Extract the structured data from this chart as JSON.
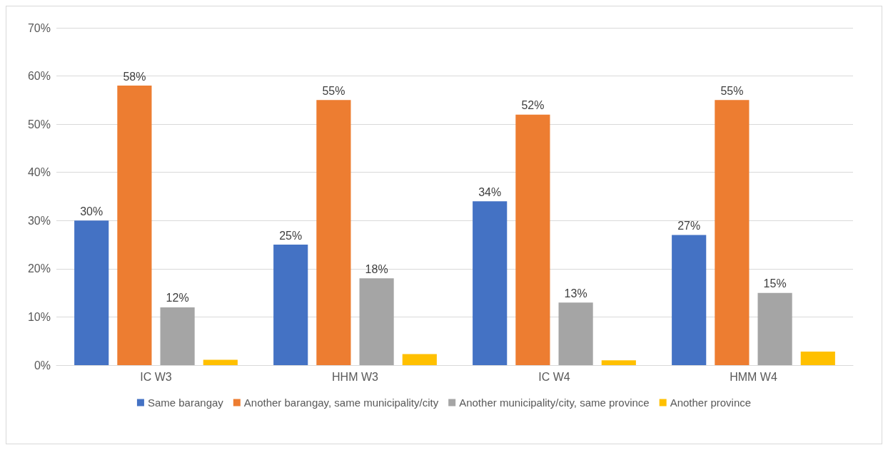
{
  "chart_data": {
    "type": "bar",
    "categories": [
      "IC W3",
      "HHM W3",
      "IC W4",
      "HMM W4"
    ],
    "series": [
      {
        "name": "Same barangay",
        "color": "#4472c4",
        "values": [
          30,
          25,
          34,
          27
        ],
        "value_labels": [
          "30%",
          "25%",
          "34%",
          "27%"
        ]
      },
      {
        "name": "Another barangay, same municipality/city",
        "color": "#ed7d31",
        "values": [
          58,
          55,
          52,
          55
        ],
        "value_labels": [
          "58%",
          "55%",
          "52%",
          "55%"
        ]
      },
      {
        "name": "Another municipality/city, same province",
        "color": "#a5a5a5",
        "values": [
          12,
          18,
          13,
          15
        ],
        "value_labels": [
          "12%",
          "18%",
          "13%",
          "15%"
        ]
      },
      {
        "name": "Another province",
        "color": "#ffc000",
        "values": [
          1.1,
          2.3,
          1,
          2.8
        ],
        "value_labels": [
          null,
          null,
          null,
          null
        ]
      }
    ],
    "ylim": [
      0,
      70
    ],
    "yticks": [
      {
        "value": 0,
        "label": "0%"
      },
      {
        "value": 10,
        "label": "10%"
      },
      {
        "value": 20,
        "label": "20%"
      },
      {
        "value": 30,
        "label": "30%"
      },
      {
        "value": 40,
        "label": "40%"
      },
      {
        "value": 50,
        "label": "50%"
      },
      {
        "value": 60,
        "label": "60%"
      },
      {
        "value": 70,
        "label": "70%"
      }
    ],
    "grid": "y",
    "legend": "bottom"
  }
}
